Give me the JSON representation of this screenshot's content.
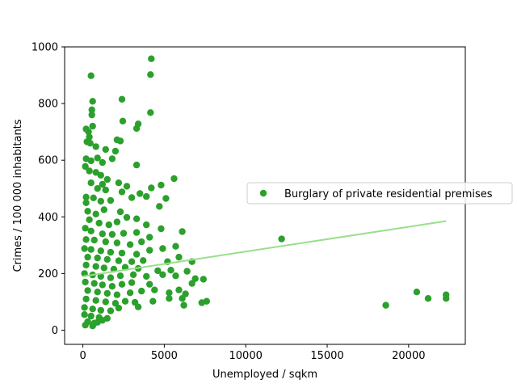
{
  "chart_data": {
    "type": "scatter",
    "title": "",
    "xlabel": "Unemployed / sqkm",
    "ylabel": "Crimes / 100 000 inhabitants",
    "xlim": [
      -1120,
      23480
    ],
    "ylim": [
      -50,
      1000
    ],
    "xticks": [
      0,
      5000,
      10000,
      15000,
      20000
    ],
    "xtick_labels": [
      "0",
      "5000",
      "10000",
      "15000",
      "20000"
    ],
    "yticks": [
      0,
      200,
      400,
      600,
      800,
      1000
    ],
    "ytick_labels": [
      "0",
      "200",
      "400",
      "600",
      "800",
      "1000"
    ],
    "grid": false,
    "legend": {
      "placement": "center-right",
      "entries": [
        "Burglary of private residential premises"
      ]
    },
    "colors": {
      "points": "#2ca02c",
      "trend": "#98df8a"
    },
    "trendline": {
      "x": [
        0,
        22300
      ],
      "y": [
        190,
        385
      ]
    },
    "series": [
      {
        "name": "Burglary of private residential premises",
        "points": [
          [
            4200,
            958
          ],
          [
            500,
            898
          ],
          [
            4150,
            902
          ],
          [
            600,
            808
          ],
          [
            2400,
            815
          ],
          [
            550,
            778
          ],
          [
            550,
            760
          ],
          [
            4150,
            768
          ],
          [
            2450,
            738
          ],
          [
            3400,
            728
          ],
          [
            3300,
            712
          ],
          [
            200,
            710
          ],
          [
            350,
            700
          ],
          [
            600,
            720
          ],
          [
            400,
            682
          ],
          [
            250,
            665
          ],
          [
            450,
            660
          ],
          [
            800,
            648
          ],
          [
            2100,
            672
          ],
          [
            2300,
            668
          ],
          [
            1400,
            638
          ],
          [
            2000,
            632
          ],
          [
            200,
            605
          ],
          [
            500,
            598
          ],
          [
            900,
            608
          ],
          [
            1200,
            592
          ],
          [
            1800,
            605
          ],
          [
            3300,
            583
          ],
          [
            150,
            578
          ],
          [
            400,
            562
          ],
          [
            800,
            557
          ],
          [
            1100,
            547
          ],
          [
            1500,
            532
          ],
          [
            1200,
            515
          ],
          [
            2200,
            520
          ],
          [
            5600,
            535
          ],
          [
            2700,
            508
          ],
          [
            4800,
            512
          ],
          [
            500,
            520
          ],
          [
            900,
            500
          ],
          [
            200,
            470
          ],
          [
            1400,
            495
          ],
          [
            2400,
            488
          ],
          [
            3500,
            482
          ],
          [
            4200,
            502
          ],
          [
            200,
            450
          ],
          [
            650,
            467
          ],
          [
            1100,
            455
          ],
          [
            1700,
            458
          ],
          [
            3000,
            468
          ],
          [
            3900,
            472
          ],
          [
            5100,
            465
          ],
          [
            4700,
            437
          ],
          [
            300,
            420
          ],
          [
            800,
            410
          ],
          [
            1300,
            425
          ],
          [
            2300,
            418
          ],
          [
            2700,
            398
          ],
          [
            3300,
            393
          ],
          [
            400,
            390
          ],
          [
            1000,
            378
          ],
          [
            1600,
            372
          ],
          [
            2100,
            382
          ],
          [
            3900,
            372
          ],
          [
            150,
            360
          ],
          [
            500,
            350
          ],
          [
            1200,
            340
          ],
          [
            1800,
            338
          ],
          [
            2500,
            342
          ],
          [
            3300,
            345
          ],
          [
            4800,
            358
          ],
          [
            6100,
            348
          ],
          [
            200,
            320
          ],
          [
            700,
            318
          ],
          [
            1400,
            312
          ],
          [
            2100,
            308
          ],
          [
            2900,
            302
          ],
          [
            3600,
            312
          ],
          [
            4100,
            328
          ],
          [
            12200,
            322
          ],
          [
            100,
            288
          ],
          [
            500,
            285
          ],
          [
            1100,
            280
          ],
          [
            1700,
            275
          ],
          [
            2400,
            272
          ],
          [
            3300,
            268
          ],
          [
            4100,
            282
          ],
          [
            4900,
            288
          ],
          [
            5700,
            296
          ],
          [
            300,
            258
          ],
          [
            900,
            255
          ],
          [
            1500,
            250
          ],
          [
            2200,
            245
          ],
          [
            3000,
            242
          ],
          [
            3700,
            246
          ],
          [
            5200,
            242
          ],
          [
            5900,
            258
          ],
          [
            6700,
            242
          ],
          [
            200,
            230
          ],
          [
            800,
            225
          ],
          [
            1300,
            220
          ],
          [
            1900,
            215
          ],
          [
            2600,
            222
          ],
          [
            3400,
            218
          ],
          [
            4600,
            210
          ],
          [
            5400,
            212
          ],
          [
            6400,
            208
          ],
          [
            100,
            200
          ],
          [
            600,
            195
          ],
          [
            1100,
            190
          ],
          [
            1700,
            185
          ],
          [
            2300,
            192
          ],
          [
            3100,
            196
          ],
          [
            3900,
            190
          ],
          [
            4900,
            196
          ],
          [
            5700,
            192
          ],
          [
            6900,
            182
          ],
          [
            7400,
            180
          ],
          [
            150,
            170
          ],
          [
            700,
            165
          ],
          [
            1200,
            160
          ],
          [
            1800,
            155
          ],
          [
            2400,
            162
          ],
          [
            3000,
            168
          ],
          [
            4100,
            162
          ],
          [
            6700,
            165
          ],
          [
            300,
            140
          ],
          [
            900,
            135
          ],
          [
            1500,
            130
          ],
          [
            2100,
            125
          ],
          [
            2900,
            132
          ],
          [
            3600,
            138
          ],
          [
            4400,
            142
          ],
          [
            5300,
            132
          ],
          [
            5900,
            142
          ],
          [
            6300,
            128
          ],
          [
            200,
            110
          ],
          [
            800,
            105
          ],
          [
            1400,
            100
          ],
          [
            2000,
            95
          ],
          [
            2600,
            102
          ],
          [
            3200,
            98
          ],
          [
            4300,
            102
          ],
          [
            5300,
            112
          ],
          [
            6100,
            112
          ],
          [
            7300,
            97
          ],
          [
            7600,
            102
          ],
          [
            6200,
            88
          ],
          [
            3400,
            82
          ],
          [
            100,
            80
          ],
          [
            600,
            75
          ],
          [
            1100,
            70
          ],
          [
            1700,
            68
          ],
          [
            2200,
            78
          ],
          [
            100,
            55
          ],
          [
            500,
            50
          ],
          [
            1000,
            45
          ],
          [
            1500,
            42
          ],
          [
            300,
            30
          ],
          [
            700,
            25
          ],
          [
            1200,
            35
          ],
          [
            150,
            18
          ],
          [
            600,
            15
          ],
          [
            900,
            28
          ],
          [
            18600,
            88
          ],
          [
            20500,
            135
          ],
          [
            21200,
            112
          ],
          [
            22300,
            125
          ],
          [
            22300,
            112
          ]
        ]
      }
    ]
  }
}
